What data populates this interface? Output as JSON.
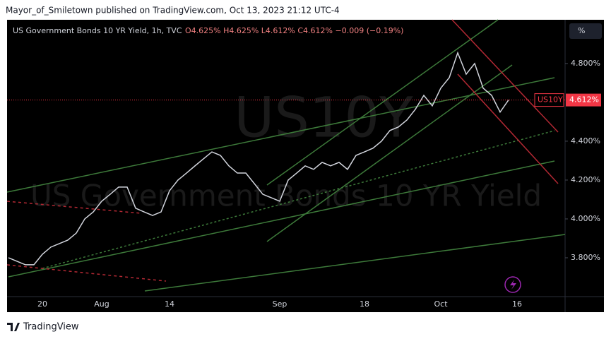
{
  "header": {
    "publisher": "Mayor_of_Smiletown published on TradingView.com, Oct 13, 2023 21:12 UTC-4"
  },
  "chart_data": {
    "type": "line",
    "symbol_line": "US Government Bonds 10 YR Yield, 1h, TVC",
    "ohlc": "O4.625%  H4.625%  L4.612%  C4.612%  −0.009 (−0.19%)",
    "watermark_symbol": "US10Y",
    "watermark_name": "US Government Bonds 10 YR Yield",
    "scale_button": "%",
    "price_tag": {
      "symbol": "US10Y",
      "label": "4.612%"
    },
    "categories": [
      null,
      null,
      null,
      null,
      "20",
      null,
      null,
      null,
      null,
      null,
      null,
      "Aug",
      null,
      null,
      null,
      null,
      null,
      null,
      null,
      "14",
      null,
      null,
      null,
      null,
      null,
      null,
      null,
      null,
      null,
      null,
      null,
      null,
      "Sep",
      null,
      null,
      null,
      null,
      null,
      null,
      null,
      null,
      null,
      "18",
      null,
      null,
      null,
      null,
      null,
      null,
      null,
      null,
      "Oct",
      null,
      null,
      null,
      null,
      null,
      null,
      null,
      null,
      "16",
      null,
      null,
      null,
      null,
      null
    ],
    "series": [
      {
        "name": "US10Y",
        "color": "#d1d4dc",
        "values": [
          3.8,
          3.782,
          3.764,
          3.764,
          3.818,
          3.855,
          3.873,
          3.891,
          3.927,
          4.0,
          4.036,
          4.091,
          4.127,
          4.164,
          4.164,
          4.055,
          4.036,
          4.018,
          4.036,
          4.145,
          4.2,
          4.236,
          4.273,
          4.309,
          4.345,
          4.327,
          4.273,
          4.236,
          4.236,
          4.182,
          4.127,
          4.109,
          4.091,
          4.2,
          4.236,
          4.273,
          4.255,
          4.291,
          4.273,
          4.291,
          4.255,
          4.327,
          4.345,
          4.364,
          4.4,
          4.455,
          4.473,
          4.509,
          4.564,
          4.636,
          4.582,
          4.673,
          4.727,
          4.855,
          4.745,
          4.8,
          4.673,
          4.636,
          4.55,
          4.612,
          null,
          null,
          null,
          null,
          null,
          null
        ]
      }
    ],
    "ylim": [
      3.6,
      5.025
    ],
    "yticks": [
      {
        "value": 3.8,
        "label": "3.800%"
      },
      {
        "value": 4.0,
        "label": "4.000%"
      },
      {
        "value": 4.2,
        "label": "4.200%"
      },
      {
        "value": 4.4,
        "label": "4.400%"
      },
      {
        "value": 4.8,
        "label": "4.800%"
      }
    ],
    "grid": false
  },
  "footer": {
    "brand": "TradingView"
  }
}
